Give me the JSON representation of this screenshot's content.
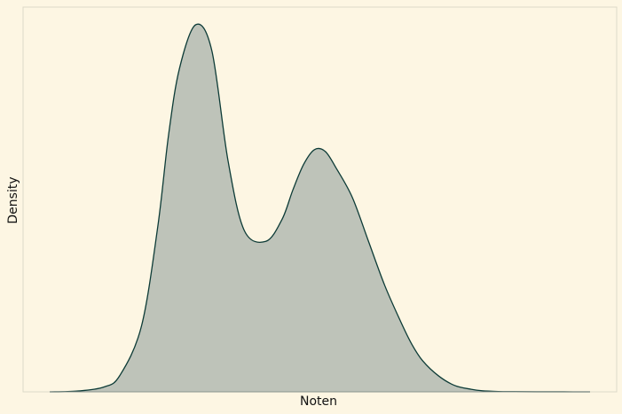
{
  "chart_data": {
    "type": "area",
    "title": "",
    "xlabel": "Noten",
    "ylabel": "Density",
    "xticks": [],
    "yticks": [],
    "grid": false,
    "legend": "none",
    "x": [
      0.0,
      0.05,
      0.1,
      0.13,
      0.17,
      0.2,
      0.22,
      0.24,
      0.27,
      0.3,
      0.33,
      0.36,
      0.4,
      0.43,
      0.45,
      0.47,
      0.49,
      0.51,
      0.53,
      0.56,
      0.59,
      0.62,
      0.65,
      0.67,
      0.69,
      0.72,
      0.75,
      0.78,
      0.8,
      0.83,
      0.86,
      0.9,
      0.95,
      1.0
    ],
    "y": [
      0.0,
      0.002,
      0.013,
      0.045,
      0.18,
      0.45,
      0.7,
      0.88,
      1.0,
      0.93,
      0.63,
      0.44,
      0.41,
      0.47,
      0.55,
      0.62,
      0.66,
      0.655,
      0.61,
      0.53,
      0.41,
      0.29,
      0.19,
      0.13,
      0.085,
      0.043,
      0.017,
      0.007,
      0.003,
      0.001,
      0.0005,
      0.0002,
      0.0001,
      0.0
    ],
    "colors": {
      "background": "#fdf6e3",
      "fill": "#bec3b9",
      "line": "#0d3b37",
      "frame": "#dddac8",
      "text": "#111111"
    }
  }
}
